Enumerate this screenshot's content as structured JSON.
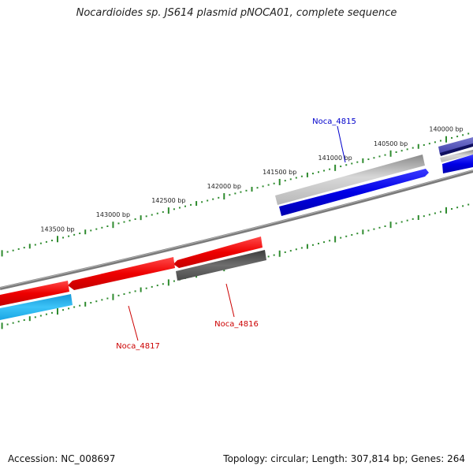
{
  "title": "Nocardioides sp. JS614 plasmid pNOCA01, complete sequence",
  "footer": {
    "accession": "Accession: NC_008697",
    "summary": "Topology: circular; Length: 307,814 bp; Genes: 264"
  },
  "ruler": {
    "tick_color": "#2e8b2e",
    "labels": [
      {
        "text": "143500 bp",
        "pos": 143500
      },
      {
        "text": "143000 bp",
        "pos": 143000
      },
      {
        "text": "142500 bp",
        "pos": 142500
      },
      {
        "text": "142000 bp",
        "pos": 142000
      },
      {
        "text": "141500 bp",
        "pos": 141500
      },
      {
        "text": "141000 bp",
        "pos": 141000
      },
      {
        "text": "140500 bp",
        "pos": 140500
      },
      {
        "text": "140000 bp",
        "pos": 140000
      }
    ]
  },
  "genes": [
    {
      "name": "Noca_4815",
      "color": "#0000cc"
    },
    {
      "name": "Noca_4816",
      "color": "#cc0000"
    },
    {
      "name": "Noca_4817",
      "color": "#cc0000"
    }
  ],
  "colors": {
    "backbone": "#808080",
    "forward_cds": "#0000e6",
    "reverse_cds": "#ee0000",
    "gray_feature": "#a9a9a9",
    "dark_feature": "#5a5a5a",
    "cyan_feature": "#1fb0ee",
    "purple_feature": "#4b4bb4"
  }
}
